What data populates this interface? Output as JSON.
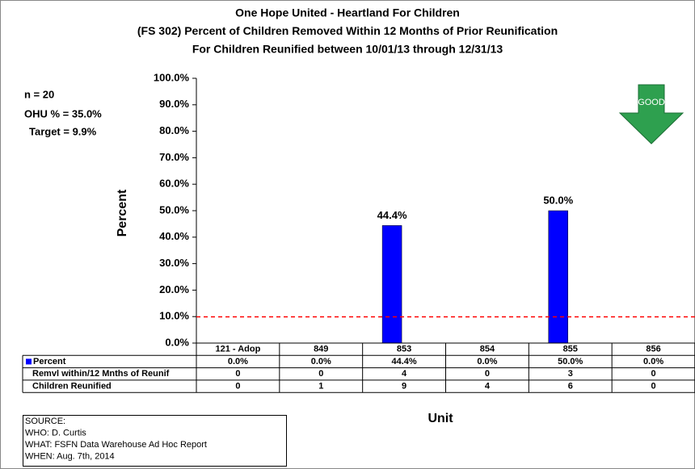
{
  "chart_data": {
    "type": "bar",
    "title": [
      "One Hope United - Heartland For Children",
      "(FS 302) Percent of Children Removed Within 12 Months of Prior Reunification",
      "For Children Reunified between 10/01/13 through 12/31/13"
    ],
    "y_label": "Percent",
    "x_label": "Unit",
    "annotations": [
      "n = 20",
      "OHU % = 35.0%"
    ],
    "target": {
      "value": 9.9,
      "label": "Target = 9.9%",
      "color": "#ff0000"
    },
    "good_label": "GOOD",
    "categories": [
      "121 - Adop",
      "849",
      "853",
      "854",
      "855",
      "856"
    ],
    "series": [
      {
        "name": "Percent",
        "color": "#0000ff",
        "values": [
          0,
          0,
          44.4,
          0,
          50,
          0
        ],
        "value_labels": [
          "0.0%",
          "0.0%",
          "44.4%",
          "0.0%",
          "50.0%",
          "0.0%"
        ]
      }
    ],
    "table_rows": [
      {
        "name": "Remvl within/12 Mnths of Reunif",
        "values": [
          0,
          0,
          4,
          0,
          3,
          0
        ]
      },
      {
        "name": "Children Reunified",
        "values": [
          0,
          1,
          9,
          4,
          6,
          0
        ]
      }
    ],
    "ylim": [
      0,
      100
    ],
    "yticks": [
      {
        "value": 0,
        "label": "0.0%"
      },
      {
        "value": 10,
        "label": "10.0%"
      },
      {
        "value": 20,
        "label": "20.0%"
      },
      {
        "value": 30,
        "label": "30.0%"
      },
      {
        "value": 40,
        "label": "40.0%"
      },
      {
        "value": 50,
        "label": "50.0%"
      },
      {
        "value": 60,
        "label": "60.0%"
      },
      {
        "value": 70,
        "label": "70.0%"
      },
      {
        "value": 80,
        "label": "80.0%"
      },
      {
        "value": 90,
        "label": "90.0%"
      },
      {
        "value": 100,
        "label": "100.0%"
      }
    ],
    "source": [
      "SOURCE:",
      "WHO:  D. Curtis",
      "WHAT:  FSFN Data Warehouse Ad Hoc Report",
      "WHEN: Aug. 7th, 2014"
    ]
  }
}
